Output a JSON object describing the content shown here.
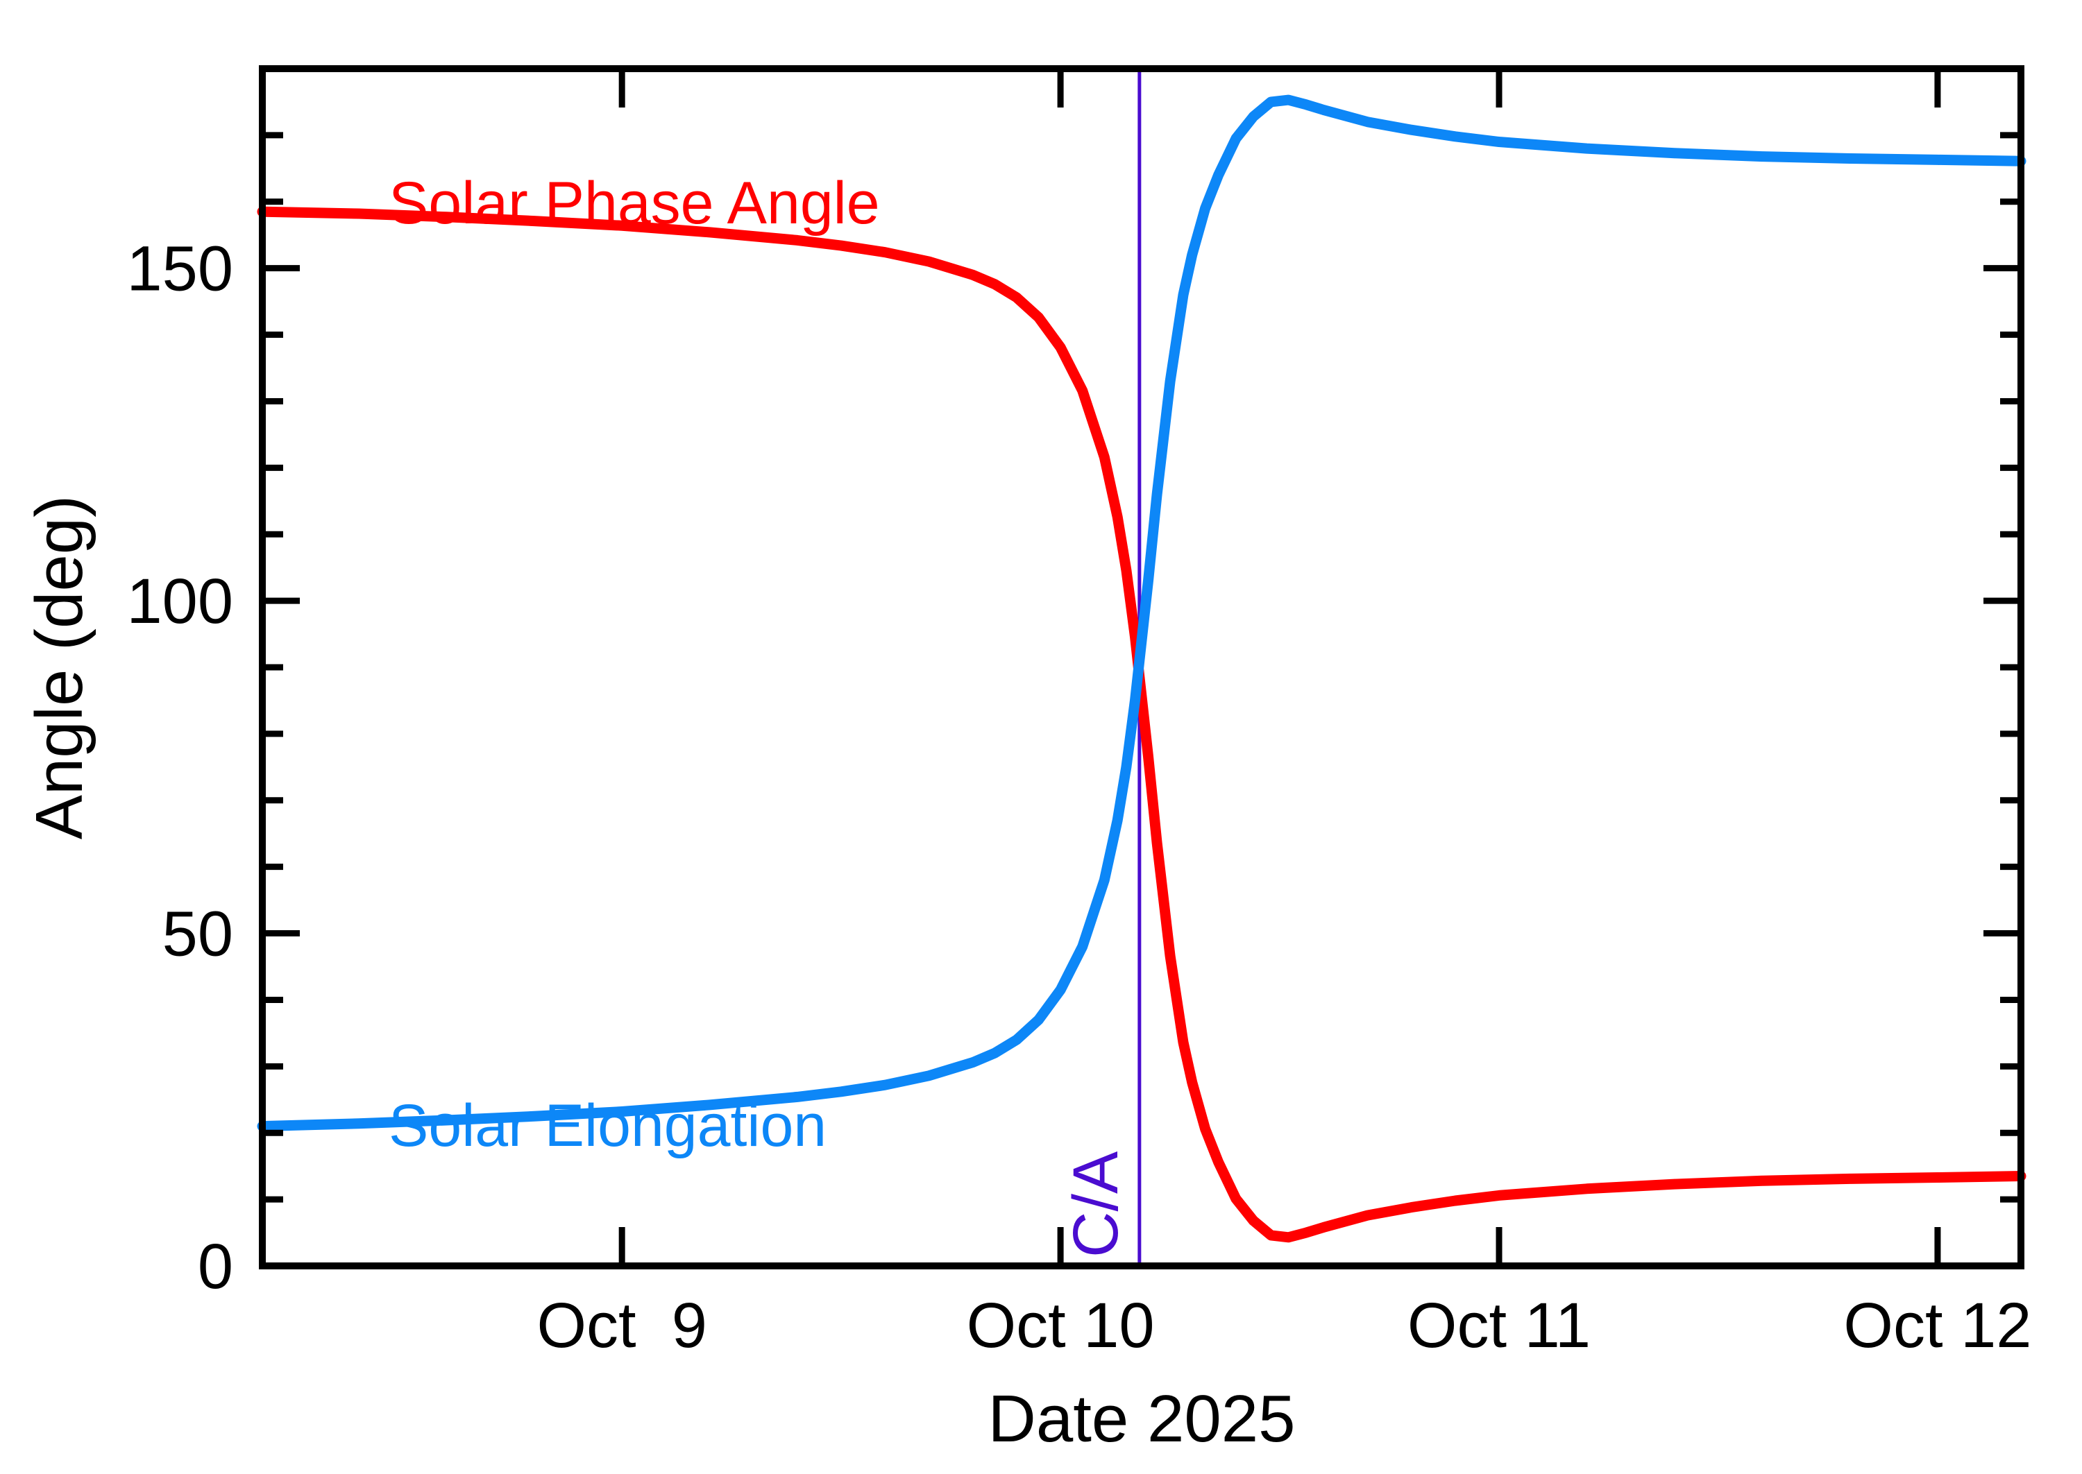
{
  "figure": {
    "background": "#ffffff",
    "frame_color": "#000000",
    "tick_label_color": "#000000"
  },
  "chart_data": {
    "type": "line",
    "title": "",
    "xlabel": "Date 2025",
    "ylabel": "Angle (deg)",
    "x_unit": "day of October 2025",
    "xlim": [
      8.18,
      12.19
    ],
    "ylim": [
      0,
      180
    ],
    "grid": false,
    "legend_position": "inline-curve-labels",
    "x_ticks": [
      {
        "value": 9,
        "label": "Oct  9"
      },
      {
        "value": 10,
        "label": "Oct 10"
      },
      {
        "value": 11,
        "label": "Oct 11"
      },
      {
        "value": 12,
        "label": "Oct 12"
      }
    ],
    "y_ticks_major": [
      0,
      50,
      100,
      150
    ],
    "y_tick_labels": [
      "0",
      "50",
      "100",
      "150"
    ],
    "y_minor_step": 10,
    "series": [
      {
        "name": "Solar Phase Angle",
        "color": "#ff0000",
        "points": [
          [
            8.18,
            158.5
          ],
          [
            8.4,
            158.2
          ],
          [
            8.6,
            157.7
          ],
          [
            8.8,
            157.1
          ],
          [
            9.0,
            156.4
          ],
          [
            9.2,
            155.4
          ],
          [
            9.4,
            154.2
          ],
          [
            9.5,
            153.4
          ],
          [
            9.6,
            152.4
          ],
          [
            9.7,
            151.0
          ],
          [
            9.8,
            149.0
          ],
          [
            9.85,
            147.6
          ],
          [
            9.9,
            145.6
          ],
          [
            9.95,
            142.6
          ],
          [
            10.0,
            138.1
          ],
          [
            10.05,
            131.6
          ],
          [
            10.1,
            121.6
          ],
          [
            10.13,
            112.6
          ],
          [
            10.15,
            104.6
          ],
          [
            10.17,
            94.6
          ],
          [
            10.18,
            88.6
          ],
          [
            10.2,
            76.6
          ],
          [
            10.22,
            63.6
          ],
          [
            10.25,
            46.6
          ],
          [
            10.28,
            33.6
          ],
          [
            10.3,
            27.6
          ],
          [
            10.33,
            20.6
          ],
          [
            10.36,
            15.6
          ],
          [
            10.4,
            10.1
          ],
          [
            10.44,
            6.8
          ],
          [
            10.48,
            4.6
          ],
          [
            10.52,
            4.3
          ],
          [
            10.56,
            5.0
          ],
          [
            10.6,
            5.8
          ],
          [
            10.7,
            7.6
          ],
          [
            10.8,
            8.8
          ],
          [
            10.9,
            9.8
          ],
          [
            11.0,
            10.6
          ],
          [
            11.2,
            11.6
          ],
          [
            11.4,
            12.3
          ],
          [
            11.6,
            12.8
          ],
          [
            11.8,
            13.1
          ],
          [
            12.0,
            13.3
          ],
          [
            12.19,
            13.5
          ]
        ]
      },
      {
        "name": "Solar Elongation",
        "color": "#0d87f7",
        "points": [
          [
            8.18,
            21.0
          ],
          [
            8.4,
            21.4
          ],
          [
            8.6,
            21.9
          ],
          [
            8.8,
            22.5
          ],
          [
            9.0,
            23.2
          ],
          [
            9.2,
            24.2
          ],
          [
            9.4,
            25.4
          ],
          [
            9.5,
            26.2
          ],
          [
            9.6,
            27.2
          ],
          [
            9.7,
            28.6
          ],
          [
            9.8,
            30.6
          ],
          [
            9.85,
            32.0
          ],
          [
            9.9,
            34.0
          ],
          [
            9.95,
            37.0
          ],
          [
            10.0,
            41.5
          ],
          [
            10.05,
            48.0
          ],
          [
            10.1,
            58.0
          ],
          [
            10.13,
            67.0
          ],
          [
            10.15,
            75.0
          ],
          [
            10.17,
            85.0
          ],
          [
            10.18,
            91.0
          ],
          [
            10.2,
            103.0
          ],
          [
            10.22,
            116.0
          ],
          [
            10.25,
            133.0
          ],
          [
            10.28,
            146.0
          ],
          [
            10.3,
            152.0
          ],
          [
            10.33,
            159.0
          ],
          [
            10.36,
            164.0
          ],
          [
            10.4,
            169.5
          ],
          [
            10.44,
            172.8
          ],
          [
            10.48,
            175.0
          ],
          [
            10.52,
            175.3
          ],
          [
            10.56,
            174.6
          ],
          [
            10.6,
            173.8
          ],
          [
            10.7,
            172.0
          ],
          [
            10.8,
            170.8
          ],
          [
            10.9,
            169.8
          ],
          [
            11.0,
            169.0
          ],
          [
            11.2,
            168.0
          ],
          [
            11.4,
            167.3
          ],
          [
            11.6,
            166.8
          ],
          [
            11.8,
            166.5
          ],
          [
            12.0,
            166.3
          ],
          [
            12.19,
            166.1
          ]
        ]
      }
    ],
    "annotations": [
      {
        "type": "vline",
        "x": 10.18,
        "label": "C/A",
        "color": "#4a0cd0"
      }
    ]
  }
}
